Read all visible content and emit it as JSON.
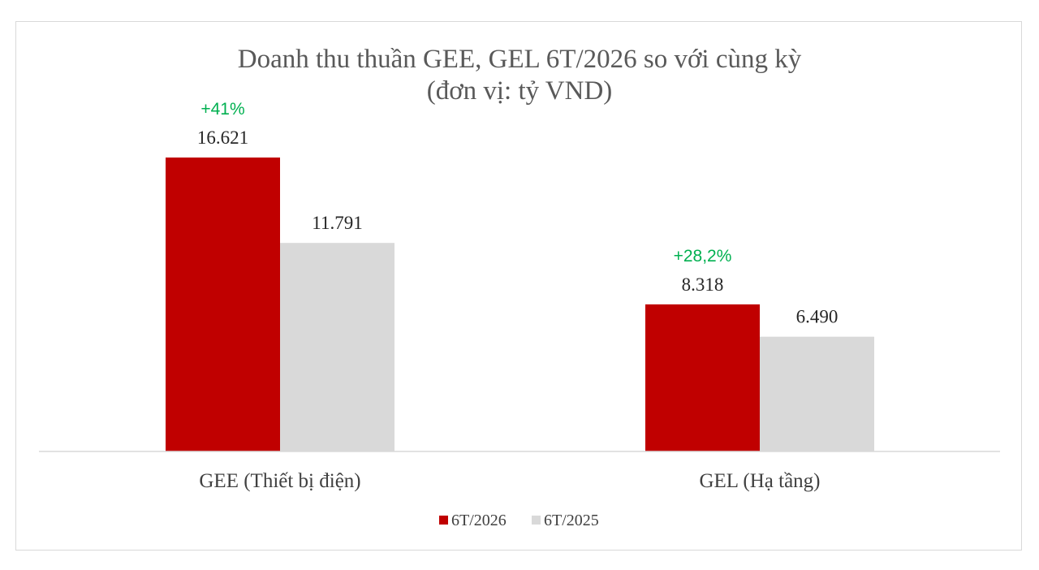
{
  "chart_data": {
    "type": "bar",
    "title": "Doanh thu thuần GEE, GEL 6T/2026 so với cùng kỳ",
    "subtitle": "(đơn vị: tỷ VND)",
    "categories": [
      "GEE (Thiết bị điện)",
      "GEL (Hạ tầng)"
    ],
    "series": [
      {
        "name": "6T/2026",
        "color": "#c00000",
        "values": [
          16621,
          8318
        ],
        "labels": [
          "16.621",
          "8.318"
        ]
      },
      {
        "name": "6T/2025",
        "color": "#d9d9d9",
        "values": [
          11791,
          6490
        ],
        "labels": [
          "11.791",
          "6.490"
        ]
      }
    ],
    "annotations": [
      "+41%",
      "+28,2%"
    ],
    "annotation_color": "#00b050",
    "ylim": [
      0,
      17000
    ],
    "grid": false,
    "legend": "bottom-center"
  }
}
